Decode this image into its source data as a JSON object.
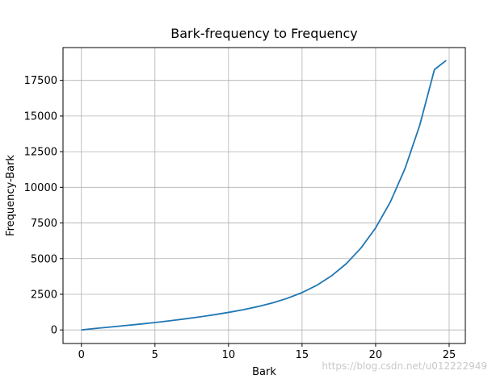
{
  "chart_data": {
    "type": "line",
    "title": "Bark-frequency to Frequency",
    "xlabel": "Bark",
    "ylabel": "Frequency-Bark",
    "xlim": [
      -1.25,
      26.1
    ],
    "ylim": [
      -950,
      19800
    ],
    "x_ticks": [
      0,
      5,
      10,
      15,
      20,
      25
    ],
    "y_ticks": [
      0,
      2500,
      5000,
      7500,
      10000,
      12500,
      15000,
      17500
    ],
    "x_tick_labels": [
      "0",
      "5",
      "10",
      "15",
      "20",
      "25"
    ],
    "y_tick_labels": [
      "0",
      "2500",
      "5000",
      "7500",
      "10000",
      "12500",
      "15000",
      "17500"
    ],
    "grid": true,
    "series": [
      {
        "color": "#1f77b4",
        "x": [
          0,
          1,
          2,
          3,
          4,
          5,
          6,
          7,
          8,
          9,
          10,
          11,
          12,
          13,
          14,
          15,
          16,
          17,
          18,
          19,
          20,
          21,
          22,
          23,
          24,
          24.8
        ],
        "y": [
          0,
          110,
          210,
          310,
          410,
          520,
          640,
          770,
          910,
          1060,
          1230,
          1420,
          1640,
          1900,
          2220,
          2620,
          3130,
          3790,
          4640,
          5740,
          7150,
          8970,
          11320,
          14350,
          18260,
          18900
        ]
      }
    ]
  },
  "watermark": "https://blog.csdn.net/u012222949"
}
